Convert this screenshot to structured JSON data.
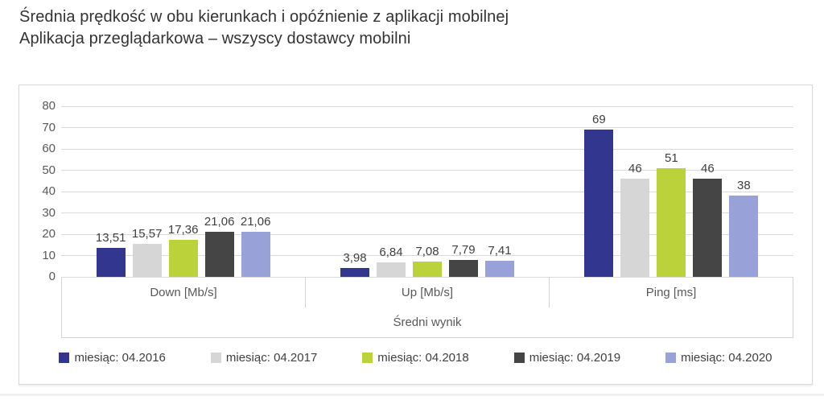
{
  "title": {
    "line1": "Średnia prędkość w obu kierunkach i opóźnienie z aplikacji mobilnej",
    "line2": "Aplikacja przeglądarkowa – wszyscy dostawcy mobilni"
  },
  "chart_data": {
    "type": "bar",
    "title": "Średnia prędkość w obu kierunkach i opóźnienie z aplikacji mobilnej — Aplikacja przeglądarkowa – wszyscy dostawcy mobilni",
    "categories": [
      "Down [Mb/s]",
      "Up [Mb/s]",
      "Ping [ms]"
    ],
    "category_keys": [
      "down",
      "up",
      "ping"
    ],
    "xlabel": "Średni wynik",
    "ylabel": "",
    "ylim": [
      0,
      80
    ],
    "yticks": [
      0,
      10,
      20,
      30,
      40,
      50,
      60,
      70,
      80
    ],
    "grid": true,
    "legend_position": "bottom",
    "series": [
      {
        "name": "miesiąc: 04.2016",
        "year": "2016",
        "color": "#33368F",
        "values": [
          13.51,
          3.98,
          69
        ],
        "display": [
          "13,51",
          "3,98",
          "69"
        ]
      },
      {
        "name": "miesiąc: 04.2017",
        "year": "2017",
        "color": "#D6D6D6",
        "values": [
          15.57,
          6.84,
          46
        ],
        "display": [
          "15,57",
          "6,84",
          "46"
        ]
      },
      {
        "name": "miesiąc: 04.2018",
        "year": "2018",
        "color": "#BCD23B",
        "values": [
          17.36,
          7.08,
          51
        ],
        "display": [
          "17,36",
          "7,08",
          "51"
        ]
      },
      {
        "name": "miesiąc: 04.2019",
        "year": "2019",
        "color": "#454545",
        "values": [
          21.06,
          7.79,
          46
        ],
        "display": [
          "21,06",
          "7,79",
          "46"
        ]
      },
      {
        "name": "miesiąc: 04.2020",
        "year": "2020",
        "color": "#98A2D8",
        "values": [
          21.06,
          7.41,
          38
        ],
        "display": [
          "21,06",
          "7,41",
          "38"
        ]
      }
    ]
  }
}
